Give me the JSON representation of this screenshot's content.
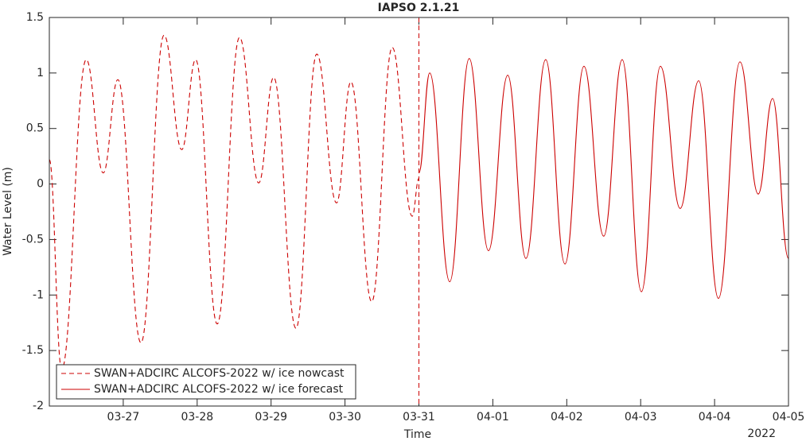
{
  "chart_data": {
    "type": "line",
    "title": "IAPSO 2.1.21",
    "xlabel": "Time",
    "ylabel": "Water Level (m)",
    "x_year_label": "2022",
    "xlim": [
      "2022-03-26T00:00",
      "2022-04-05T00:00"
    ],
    "xticks": [
      {
        "value": "2022-03-27T00:00",
        "label": "03-27"
      },
      {
        "value": "2022-03-28T00:00",
        "label": "03-28"
      },
      {
        "value": "2022-03-29T00:00",
        "label": "03-29"
      },
      {
        "value": "2022-03-30T00:00",
        "label": "03-30"
      },
      {
        "value": "2022-03-31T00:00",
        "label": "03-31"
      },
      {
        "value": "2022-04-01T00:00",
        "label": "04-01"
      },
      {
        "value": "2022-04-02T00:00",
        "label": "04-02"
      },
      {
        "value": "2022-04-03T00:00",
        "label": "04-03"
      },
      {
        "value": "2022-04-04T00:00",
        "label": "04-04"
      },
      {
        "value": "2022-04-05T00:00",
        "label": "04-05"
      }
    ],
    "ylim": [
      -2,
      1.5
    ],
    "yticks": [
      -2,
      -1.5,
      -1,
      -0.5,
      0,
      0.5,
      1,
      1.5
    ],
    "grid": false,
    "legend_position": "lower left",
    "series": [
      {
        "name": "SWAN+ADCIRC ALCOFS-2022 w/ ice nowcast",
        "color": "#cc0000",
        "line_style": "dashed",
        "x": [
          "2022-03-26T00:00",
          "2022-03-26T04:00",
          "2022-03-26T12:00",
          "2022-03-26T17:30",
          "2022-03-26T22:15",
          "2022-03-27T05:45",
          "2022-03-27T13:15",
          "2022-03-27T19:00",
          "2022-03-27T23:30",
          "2022-03-28T06:30",
          "2022-03-28T13:45",
          "2022-03-28T20:00",
          "2022-03-29T00:50",
          "2022-03-29T08:05",
          "2022-03-29T14:50",
          "2022-03-29T21:15",
          "2022-03-30T01:55",
          "2022-03-30T08:40",
          "2022-03-30T15:20",
          "2022-03-30T21:50",
          "2022-03-31T00:00"
        ],
        "values": [
          0.22,
          -1.67,
          1.12,
          0.1,
          0.94,
          -1.43,
          1.34,
          0.31,
          1.12,
          -1.26,
          1.32,
          0.01,
          0.96,
          -1.3,
          1.17,
          -0.17,
          0.92,
          -1.06,
          1.23,
          -0.29,
          0.05
        ]
      },
      {
        "name": "SWAN+ADCIRC ALCOFS-2022 w/ ice forecast",
        "color": "#cc0000",
        "line_style": "solid",
        "x": [
          "2022-03-31T00:00",
          "2022-03-31T03:30",
          "2022-03-31T10:00",
          "2022-03-31T16:20",
          "2022-03-31T22:35",
          "2022-04-01T04:50",
          "2022-04-01T10:45",
          "2022-04-01T17:10",
          "2022-04-01T23:25",
          "2022-04-02T05:35",
          "2022-04-02T12:00",
          "2022-04-02T18:00",
          "2022-04-03T00:15",
          "2022-04-03T06:25",
          "2022-04-03T12:50",
          "2022-04-03T18:50",
          "2022-04-04T01:15",
          "2022-04-04T08:15",
          "2022-04-04T14:10",
          "2022-04-04T18:50",
          "2022-04-05T00:00"
        ],
        "values": [
          0.1,
          1.0,
          -0.88,
          1.13,
          -0.6,
          0.98,
          -0.67,
          1.12,
          -0.72,
          1.06,
          -0.47,
          1.12,
          -0.97,
          1.06,
          -0.22,
          0.93,
          -1.03,
          1.1,
          -0.09,
          0.77,
          -0.67
        ]
      }
    ]
  }
}
